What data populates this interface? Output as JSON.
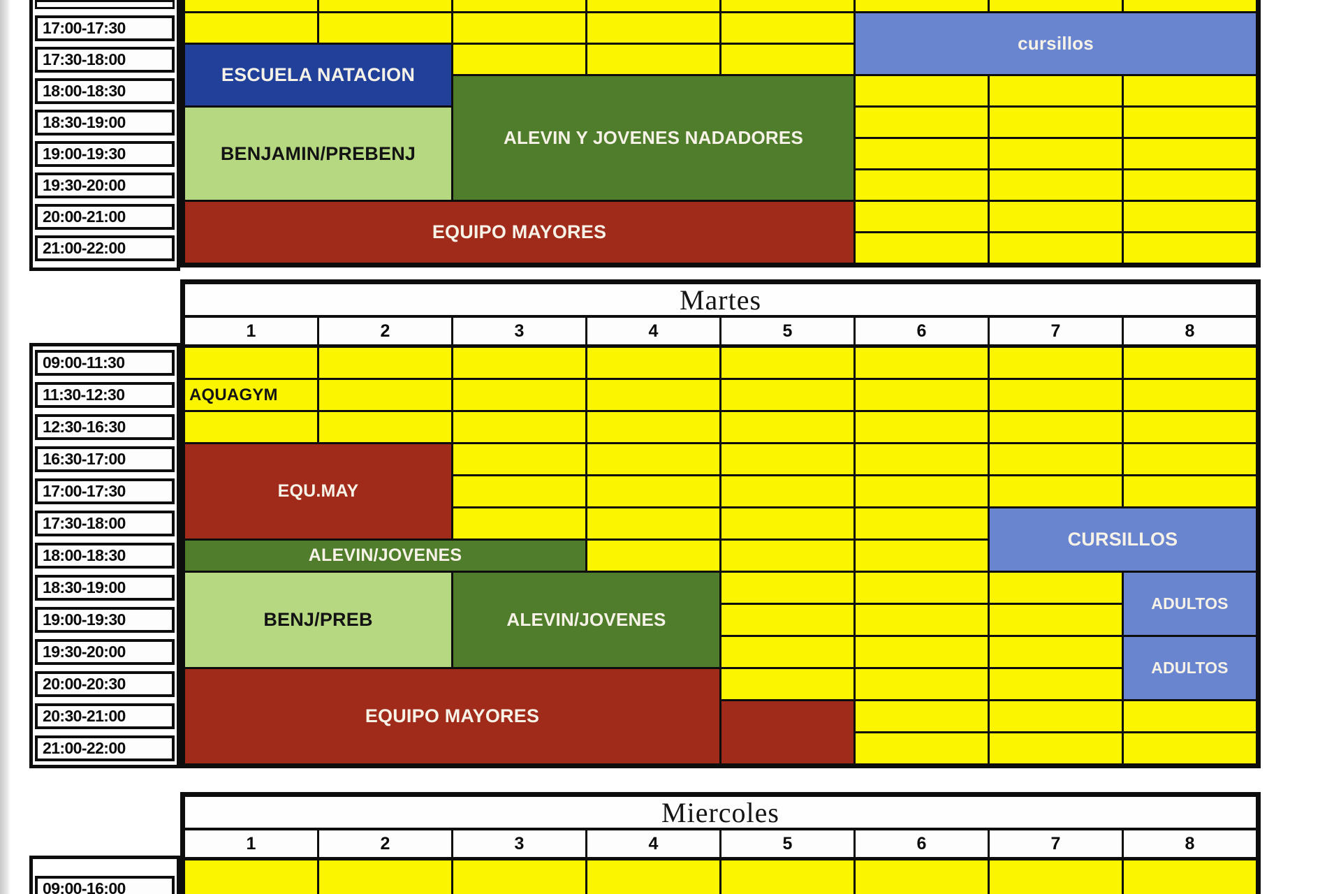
{
  "page": {
    "kind": "scanned pool lane schedule",
    "background": "#ffffff"
  },
  "palette": {
    "free_yellow": "#fcf500",
    "grid_black": "#0d0d0d",
    "escuela_blue": "#21409a",
    "cursillos_blue": "#6a85d0",
    "dark_green": "#507d2b",
    "light_green": "#b6d880",
    "team_red": "#a12b1b",
    "text_dark": "#131313",
    "text_light": "#f6f2e7"
  },
  "lane_columns": [
    "1",
    "2",
    "3",
    "4",
    "5",
    "6",
    "7",
    "8"
  ],
  "tables": [
    {
      "name": "lunes-partial",
      "title": "",
      "show_title": false,
      "show_header": false,
      "rows": [
        {
          "label": "",
          "partial": true
        },
        {
          "label": "17:00-17:30"
        },
        {
          "label": "17:30-18:00"
        },
        {
          "label": "18:00-18:30"
        },
        {
          "label": "18:30-19:00"
        },
        {
          "label": "19:00-19:30"
        },
        {
          "label": "19:30-20:00"
        },
        {
          "label": "20:00-21:00"
        },
        {
          "label": "21:00-22:00"
        }
      ],
      "blocks": [
        {
          "label": "cursillos",
          "col": 6,
          "colspan": 3,
          "row": 1,
          "rowspan": 2,
          "bg": "cursillos_blue",
          "fg": "text_light",
          "fs": 26
        },
        {
          "label": "ESCUELA NATACION",
          "col": 1,
          "colspan": 2,
          "row": 2,
          "rowspan": 2,
          "bg": "escuela_blue",
          "fg": "text_light",
          "fs": 27
        },
        {
          "label": "ALEVIN Y JOVENES NADADORES",
          "col": 3,
          "colspan": 3,
          "row": 3,
          "rowspan": 4,
          "bg": "dark_green",
          "fg": "text_light",
          "fs": 26
        },
        {
          "label": "BENJAMIN/PREBENJ",
          "col": 1,
          "colspan": 2,
          "row": 4,
          "rowspan": 3,
          "bg": "light_green",
          "fg": "text_dark",
          "fs": 27
        },
        {
          "label": "EQUIPO MAYORES",
          "col": 1,
          "colspan": 5,
          "row": 7,
          "rowspan": 2,
          "bg": "team_red",
          "fg": "text_light",
          "fs": 27
        }
      ]
    },
    {
      "name": "martes",
      "title": "Martes",
      "show_title": true,
      "show_header": true,
      "rows": [
        {
          "label": "09:00-11:30"
        },
        {
          "label": "11:30-12:30"
        },
        {
          "label": "12:30-16:30"
        },
        {
          "label": "16:30-17:00"
        },
        {
          "label": "17:00-17:30"
        },
        {
          "label": "17:30-18:00"
        },
        {
          "label": "18:00-18:30"
        },
        {
          "label": "18:30-19:00"
        },
        {
          "label": "19:00-19:30"
        },
        {
          "label": "19:30-20:00"
        },
        {
          "label": "20:00-20:30"
        },
        {
          "label": "20:30-21:00"
        },
        {
          "label": "21:00-22:00"
        }
      ],
      "blocks": [
        {
          "label": "AQUAGYM",
          "col": 1,
          "colspan": 1,
          "row": 1,
          "rowspan": 1,
          "bg": "free_yellow",
          "fg": "text_dark",
          "fs": 24,
          "align": "left"
        },
        {
          "label": "EQU.MAY",
          "col": 1,
          "colspan": 2,
          "row": 3,
          "rowspan": 3,
          "bg": "team_red",
          "fg": "text_light",
          "fs": 25
        },
        {
          "label": "ALEVIN/JOVENES",
          "col": 1,
          "colspan": 3,
          "row": 6,
          "rowspan": 1,
          "bg": "dark_green",
          "fg": "text_light",
          "fs": 25
        },
        {
          "label": "BENJ/PREB",
          "col": 1,
          "colspan": 2,
          "row": 7,
          "rowspan": 3,
          "bg": "light_green",
          "fg": "text_dark",
          "fs": 27
        },
        {
          "label": "ALEVIN/JOVENES",
          "col": 3,
          "colspan": 2,
          "row": 7,
          "rowspan": 3,
          "bg": "dark_green",
          "fg": "text_light",
          "fs": 26
        },
        {
          "label": "CURSILLOS",
          "col": 7,
          "colspan": 2,
          "row": 5,
          "rowspan": 2,
          "bg": "cursillos_blue",
          "fg": "text_light",
          "fs": 27
        },
        {
          "label": "ADULTOS",
          "col": 8,
          "colspan": 1,
          "row": 7,
          "rowspan": 2,
          "bg": "cursillos_blue",
          "fg": "text_light",
          "fs": 23
        },
        {
          "label": "ADULTOS",
          "col": 8,
          "colspan": 1,
          "row": 9,
          "rowspan": 2,
          "bg": "cursillos_blue",
          "fg": "text_light",
          "fs": 23
        },
        {
          "label": "EQUIPO MAYORES",
          "col": 1,
          "colspan": 4,
          "row": 10,
          "rowspan": 3,
          "bg": "team_red",
          "fg": "text_light",
          "fs": 27
        },
        {
          "label": "",
          "col": 5,
          "colspan": 1,
          "row": 11,
          "rowspan": 2,
          "bg": "team_red",
          "fg": "text_light",
          "fs": 20
        }
      ]
    },
    {
      "name": "miercoles-partial",
      "title": "Miercoles",
      "show_title": true,
      "show_header": true,
      "rows": [
        {
          "label": "09:00-16:00"
        }
      ],
      "blocks": []
    }
  ]
}
